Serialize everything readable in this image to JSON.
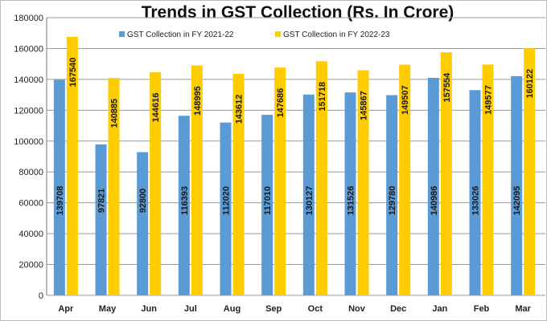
{
  "chart_data": {
    "type": "bar",
    "title": "Trends in GST Collection (Rs. In Crore)",
    "xlabel": "",
    "ylabel": "",
    "ylim": [
      0,
      180000
    ],
    "yticks": [
      0,
      20000,
      40000,
      60000,
      80000,
      100000,
      120000,
      140000,
      160000,
      180000
    ],
    "grid": true,
    "legend_position": "top-center",
    "categories": [
      "Apr",
      "May",
      "Jun",
      "Jul",
      "Aug",
      "Sep",
      "Oct",
      "Nov",
      "Dec",
      "Jan",
      "Feb",
      "Mar"
    ],
    "series": [
      {
        "name": "GST Collection in FY 2021-22",
        "color": "#5b9bd5",
        "values": [
          139708,
          97821,
          92800,
          116393,
          112020,
          117010,
          130127,
          131526,
          129780,
          140986,
          133026,
          142095
        ]
      },
      {
        "name": "GST Collection in FY 2022-23",
        "color": "#ffcc00",
        "values": [
          167540,
          140885,
          144616,
          148995,
          143612,
          147686,
          151718,
          145867,
          149507,
          157554,
          149577,
          160122
        ]
      }
    ]
  }
}
